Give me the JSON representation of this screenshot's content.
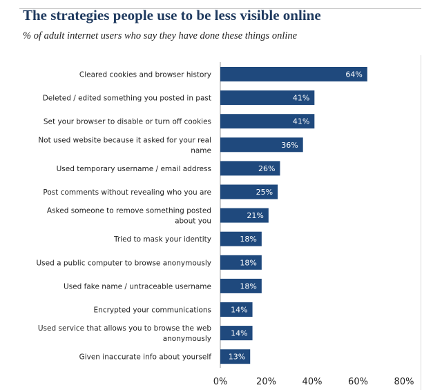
{
  "chart_data": {
    "type": "bar",
    "orientation": "horizontal",
    "title": "The strategies people use to be less visible online",
    "subtitle": "% of adult internet users who say they have done these things online",
    "categories": [
      [
        "Cleared cookies and browser history"
      ],
      [
        "Deleted / edited something you posted in past"
      ],
      [
        "Set your browser to disable or turn off cookies"
      ],
      [
        "Not used website because it asked for your real",
        "name"
      ],
      [
        "Used temporary username / email address"
      ],
      [
        "Post comments without revealing who you are"
      ],
      [
        "Asked someone to remove something posted",
        "about you"
      ],
      [
        "Tried to mask your identity"
      ],
      [
        "Used a public computer to browse anonymously"
      ],
      [
        "Used fake name / untraceable username"
      ],
      [
        "Encrypted your communications"
      ],
      [
        "Used service that allows you to browse the web",
        "anonymously"
      ],
      [
        "Given inaccurate info about yourself"
      ]
    ],
    "values": [
      64,
      41,
      41,
      36,
      26,
      25,
      21,
      18,
      18,
      18,
      14,
      14,
      13
    ],
    "data_labels": [
      "64%",
      "41%",
      "41%",
      "36%",
      "26%",
      "25%",
      "21%",
      "18%",
      "18%",
      "18%",
      "14%",
      "14%",
      "13%"
    ],
    "xlim": [
      0,
      80
    ],
    "xticks": [
      0,
      20,
      40,
      60,
      80
    ],
    "xtick_labels": [
      "0%",
      "20%",
      "40%",
      "60%",
      "80%"
    ],
    "bar_color": "#1f497d",
    "grid": false,
    "legend": "none"
  }
}
